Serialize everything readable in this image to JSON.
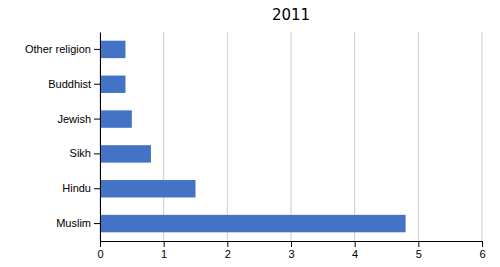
{
  "chart_data": {
    "type": "bar",
    "title": "2011",
    "categories": [
      "Muslim",
      "Hindu",
      "Sikh",
      "Jewish",
      "Buddhist",
      "Other religion"
    ],
    "values": [
      4.8,
      1.5,
      0.8,
      0.5,
      0.4,
      0.4
    ],
    "color": "#4472C4",
    "orientation": "horizontal",
    "xlim": [
      0,
      6
    ],
    "xticks": [
      0,
      1,
      2,
      3,
      4,
      5,
      6
    ],
    "grid": true
  }
}
